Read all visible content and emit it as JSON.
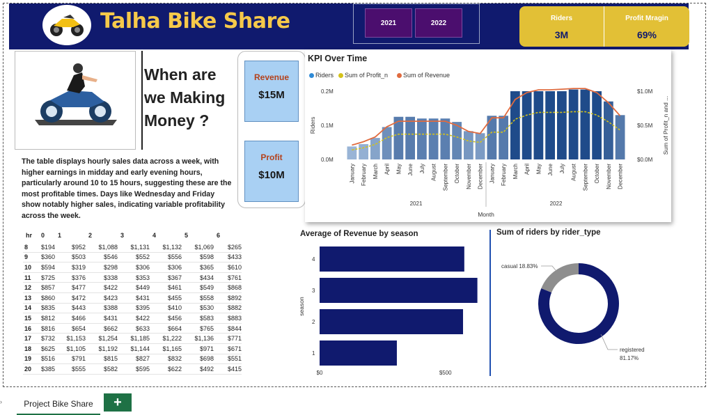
{
  "header": {
    "title": "Talha Bike Share",
    "year_slicer": [
      "2021",
      "2022"
    ],
    "kpis": [
      {
        "label": "Riders",
        "value": "3M"
      },
      {
        "label": "Profit Mragin",
        "value": "69%"
      }
    ]
  },
  "headline": [
    "When are",
    "we Making",
    "Money ?"
  ],
  "measures": [
    {
      "label": "Revenue",
      "value": "$15M"
    },
    {
      "label": "Profit",
      "value": "$10M"
    }
  ],
  "description": "The table displays hourly sales data across a week, with higher earnings in midday and early evening hours, particularly around 10 to 15 hours, suggesting these are the most profitable times. Days like Wednesday and Friday show notably higher sales, indicating variable profitability across the week.",
  "hour_table": {
    "corner": "hr",
    "days": [
      "0",
      "1",
      "2",
      "3",
      "4",
      "5",
      "6"
    ],
    "rows": [
      {
        "hr": "8",
        "cells": [
          "$194",
          "$952",
          "$1,088",
          "$1,131",
          "$1,132",
          "$1,069",
          "$265"
        ]
      },
      {
        "hr": "9",
        "cells": [
          "$360",
          "$503",
          "$546",
          "$552",
          "$556",
          "$598",
          "$433"
        ]
      },
      {
        "hr": "10",
        "cells": [
          "$594",
          "$319",
          "$298",
          "$306",
          "$306",
          "$365",
          "$610"
        ]
      },
      {
        "hr": "11",
        "cells": [
          "$725",
          "$376",
          "$338",
          "$353",
          "$367",
          "$434",
          "$761"
        ]
      },
      {
        "hr": "12",
        "cells": [
          "$857",
          "$477",
          "$422",
          "$449",
          "$461",
          "$549",
          "$868"
        ]
      },
      {
        "hr": "13",
        "cells": [
          "$860",
          "$472",
          "$423",
          "$431",
          "$455",
          "$558",
          "$892"
        ]
      },
      {
        "hr": "14",
        "cells": [
          "$835",
          "$443",
          "$388",
          "$395",
          "$410",
          "$530",
          "$882"
        ]
      },
      {
        "hr": "15",
        "cells": [
          "$812",
          "$466",
          "$431",
          "$422",
          "$456",
          "$583",
          "$883"
        ]
      },
      {
        "hr": "16",
        "cells": [
          "$816",
          "$654",
          "$662",
          "$633",
          "$664",
          "$765",
          "$844"
        ]
      },
      {
        "hr": "17",
        "cells": [
          "$732",
          "$1,153",
          "$1,254",
          "$1,185",
          "$1,222",
          "$1,136",
          "$771"
        ]
      },
      {
        "hr": "18",
        "cells": [
          "$625",
          "$1,105",
          "$1,192",
          "$1,144",
          "$1,165",
          "$971",
          "$671"
        ]
      },
      {
        "hr": "19",
        "cells": [
          "$516",
          "$791",
          "$815",
          "$827",
          "$832",
          "$698",
          "$551"
        ]
      },
      {
        "hr": "20",
        "cells": [
          "$385",
          "$555",
          "$582",
          "$595",
          "$622",
          "$492",
          "$415"
        ]
      }
    ]
  },
  "sheet_tab": "Project Bike Share",
  "chart_data": [
    {
      "type": "bar",
      "title": "KPI Over Time",
      "legend": [
        "Riders",
        "Sum of Profit_n",
        "Sum of Revenue"
      ],
      "legend_position": "top-left",
      "xlabel": "Month",
      "ylabel": "Riders",
      "y2label": "Sum of Profit_n and ...",
      "year_groups": [
        "2021",
        "2022"
      ],
      "categories": [
        "January",
        "February",
        "March",
        "April",
        "May",
        "June",
        "July",
        "August",
        "September",
        "October",
        "November",
        "December",
        "January",
        "February",
        "March",
        "April",
        "May",
        "June",
        "July",
        "August",
        "September",
        "October",
        "November",
        "December"
      ],
      "y_ticks": [
        "0.0M",
        "0.1M",
        "0.2M"
      ],
      "y2_ticks": [
        "$0.0M",
        "$0.5M",
        "$1.0M"
      ],
      "ylim": [
        0,
        0.2
      ],
      "y2lim": [
        0,
        1.0
      ],
      "colors": {
        "riders": "#2f5f9a",
        "profit": "#d4c21b",
        "revenue": "#e06b3f"
      },
      "series": [
        {
          "name": "Riders",
          "values": [
            0.038,
            0.045,
            0.063,
            0.095,
            0.125,
            0.125,
            0.12,
            0.12,
            0.12,
            0.11,
            0.083,
            0.077,
            0.128,
            0.128,
            0.2,
            0.2,
            0.2,
            0.2,
            0.2,
            0.205,
            0.205,
            0.2,
            0.17,
            0.13
          ]
        },
        {
          "name": "Sum of Profit_n",
          "values": [
            0.14,
            0.17,
            0.22,
            0.32,
            0.37,
            0.37,
            0.37,
            0.37,
            0.37,
            0.33,
            0.27,
            0.25,
            0.4,
            0.4,
            0.59,
            0.65,
            0.69,
            0.69,
            0.69,
            0.7,
            0.7,
            0.65,
            0.55,
            0.43
          ]
        },
        {
          "name": "Sum of Revenue",
          "values": [
            0.21,
            0.26,
            0.33,
            0.48,
            0.56,
            0.56,
            0.56,
            0.56,
            0.56,
            0.5,
            0.41,
            0.38,
            0.61,
            0.61,
            0.88,
            0.98,
            1.02,
            1.02,
            1.03,
            1.04,
            1.04,
            0.98,
            0.83,
            0.64
          ]
        }
      ]
    },
    {
      "type": "bar",
      "orientation": "horizontal",
      "title": "Average of Revenue by season",
      "ylabel": "season",
      "categories": [
        "4",
        "3",
        "2",
        "1"
      ],
      "values": [
        575,
        627,
        570,
        307
      ],
      "xlim": [
        0,
        700
      ],
      "x_ticks": [
        "$0",
        "$500"
      ],
      "color": "#101a6e"
    },
    {
      "type": "pie",
      "title": "Sum of riders by rider_type",
      "slices": [
        {
          "label": "casual",
          "pct_label": "18.83%",
          "value": 18.83,
          "color": "#8e8e8e"
        },
        {
          "label": "registered",
          "pct_label": "81.17%",
          "value": 81.17,
          "color": "#101a6e"
        }
      ]
    }
  ]
}
